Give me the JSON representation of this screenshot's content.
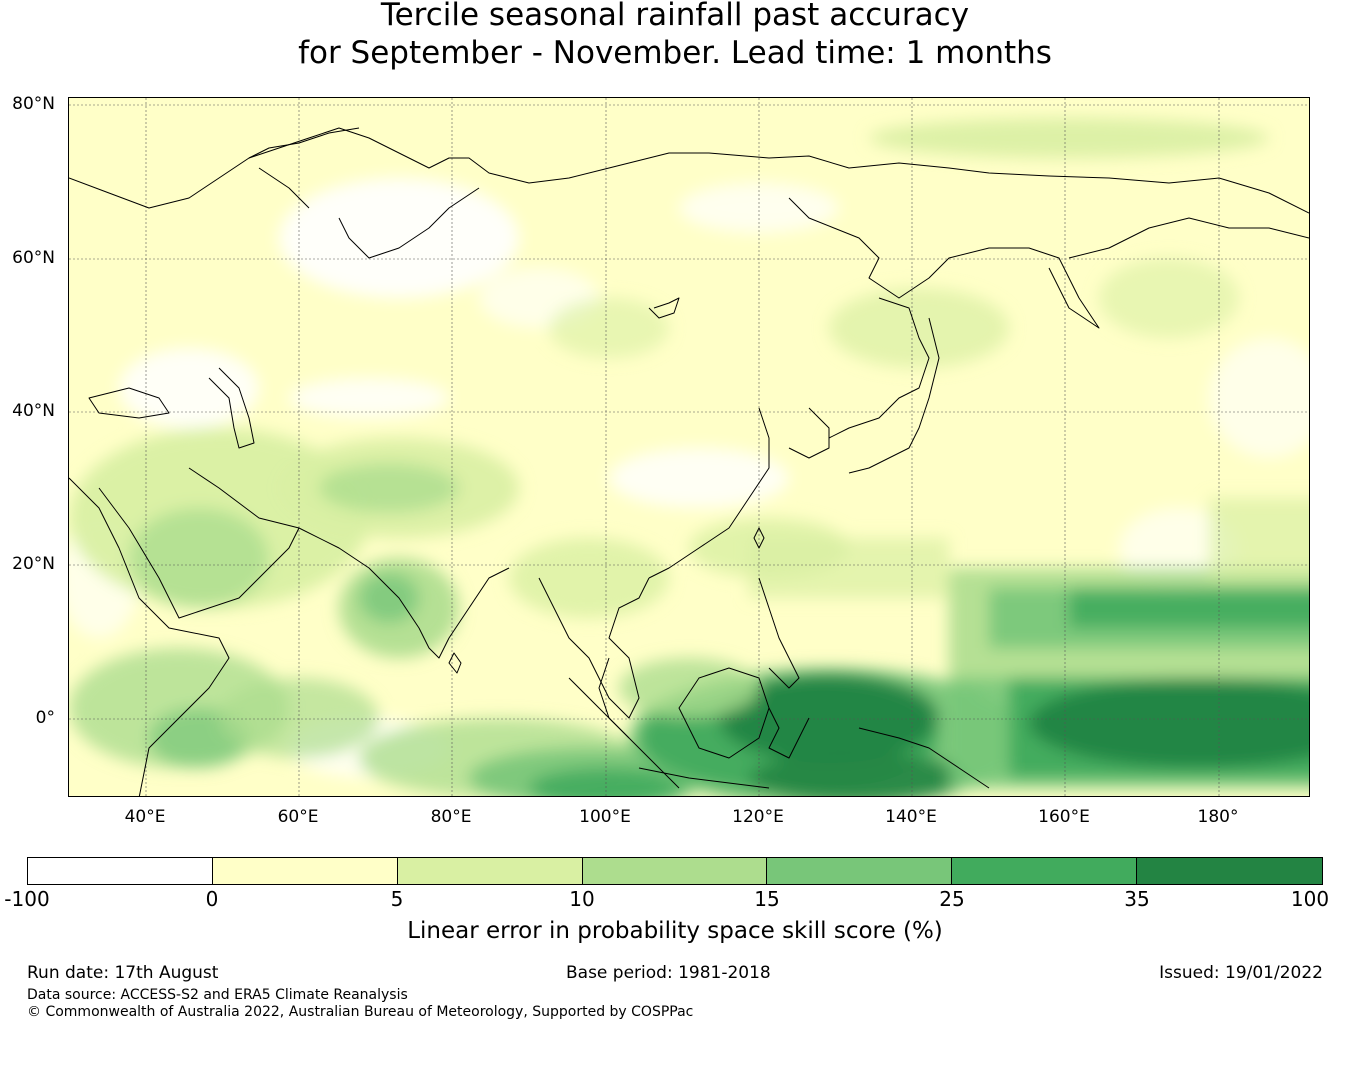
{
  "title": {
    "line1": "Tercile seasonal rainfall past accuracy",
    "line2": "for September - November. Lead time: 1 months"
  },
  "map": {
    "region": "Asia, Indian Ocean and western Pacific",
    "base_color": "#ffffc8",
    "coastline_color": "#000000",
    "latitude_labels": [
      "80°N",
      "60°N",
      "40°N",
      "20°N",
      "0°"
    ],
    "longitude_labels": [
      "40°E",
      "60°E",
      "80°E",
      "100°E",
      "120°E",
      "140°E",
      "160°E",
      "180°"
    ]
  },
  "colorbar": {
    "ticks": [
      "-100",
      "0",
      "5",
      "10",
      "15",
      "25",
      "35",
      "100"
    ],
    "colors": [
      "#ffffff",
      "#ffffc8",
      "#d9f0a3",
      "#addd8e",
      "#78c679",
      "#41ab5d",
      "#238443"
    ],
    "label": "Linear error in probability space skill score (%)"
  },
  "footer": {
    "run_date": "Run date: 17th August",
    "base_period": "Base period: 1981-2018",
    "issued": "Issued: 19/01/2022",
    "data_source": "Data source: ACCESS-S2 and ERA5 Climate Reanalysis",
    "copyright": "© Commonwealth of Australia 2022, Australian Bureau of Meteorology, Supported by COSPPac"
  }
}
